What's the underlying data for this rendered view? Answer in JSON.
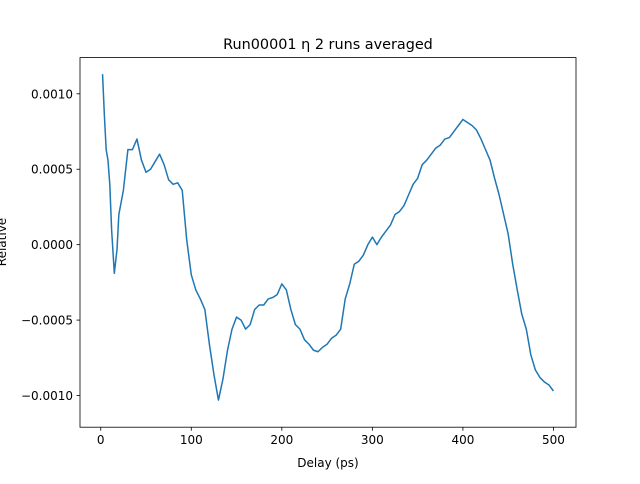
{
  "chart_data": {
    "type": "line",
    "title": "Run00001 η 2 runs averaged",
    "x_label": "Delay (ps)",
    "y_label": "Relative",
    "x": [
      2,
      4,
      6,
      8,
      10,
      12,
      15,
      18,
      20,
      25,
      30,
      35,
      40,
      45,
      50,
      55,
      60,
      65,
      70,
      75,
      80,
      85,
      90,
      95,
      100,
      105,
      110,
      115,
      120,
      125,
      130,
      135,
      140,
      145,
      150,
      155,
      160,
      165,
      170,
      175,
      180,
      185,
      190,
      195,
      200,
      205,
      210,
      215,
      220,
      225,
      230,
      235,
      240,
      245,
      250,
      255,
      260,
      265,
      270,
      275,
      280,
      285,
      290,
      295,
      300,
      305,
      310,
      315,
      320,
      325,
      330,
      335,
      340,
      345,
      350,
      355,
      360,
      365,
      370,
      375,
      380,
      385,
      390,
      395,
      400,
      405,
      410,
      415,
      420,
      425,
      430,
      435,
      440,
      445,
      450,
      455,
      460,
      465,
      470,
      475,
      480,
      485,
      490,
      495,
      500
    ],
    "series": [
      {
        "name": "eta",
        "color": "#1f77b4",
        "values": [
          0.00113,
          0.00086,
          0.00063,
          0.00056,
          0.0004,
          0.0001,
          -0.00019,
          -3e-05,
          0.0002,
          0.00036,
          0.00063,
          0.00063,
          0.0007,
          0.00056,
          0.00048,
          0.0005,
          0.00055,
          0.0006,
          0.00053,
          0.00043,
          0.0004,
          0.00041,
          0.00036,
          3e-05,
          -0.0002,
          -0.0003,
          -0.00036,
          -0.00043,
          -0.00066,
          -0.00086,
          -0.00103,
          -0.00089,
          -0.0007,
          -0.00056,
          -0.00048,
          -0.0005,
          -0.00056,
          -0.00053,
          -0.00043,
          -0.0004,
          -0.0004,
          -0.00036,
          -0.00035,
          -0.00033,
          -0.00026,
          -0.0003,
          -0.00043,
          -0.00053,
          -0.00056,
          -0.00063,
          -0.00066,
          -0.0007,
          -0.00071,
          -0.00068,
          -0.00066,
          -0.00062,
          -0.0006,
          -0.00056,
          -0.00036,
          -0.00026,
          -0.00013,
          -0.00011,
          -7e-05,
          0,
          5e-05,
          0,
          5e-05,
          9e-05,
          0.00013,
          0.0002,
          0.00022,
          0.00026,
          0.00033,
          0.0004,
          0.00044,
          0.00053,
          0.00056,
          0.0006,
          0.00064,
          0.00066,
          0.0007,
          0.00071,
          0.00075,
          0.00079,
          0.00083,
          0.00081,
          0.00079,
          0.00076,
          0.0007,
          0.00063,
          0.00056,
          0.00044,
          0.00033,
          0.0002,
          7e-05,
          -0.00013,
          -0.0003,
          -0.00046,
          -0.00056,
          -0.00073,
          -0.00083,
          -0.00088,
          -0.00091,
          -0.00093,
          -0.00097
        ]
      }
    ],
    "xlim": [
      -22.9,
      524.9
    ],
    "ylim": [
      -0.00121,
      0.00124
    ],
    "xticks": [
      0,
      100,
      200,
      300,
      400,
      500
    ],
    "yticks": [
      {
        "value": -0.001,
        "label": "−0.0010"
      },
      {
        "value": -0.0005,
        "label": "−0.0005"
      },
      {
        "value": 0,
        "label": "0.0000"
      },
      {
        "value": 0.0005,
        "label": "0.0005"
      },
      {
        "value": 0.001,
        "label": "0.0010"
      }
    ],
    "grid": false
  }
}
